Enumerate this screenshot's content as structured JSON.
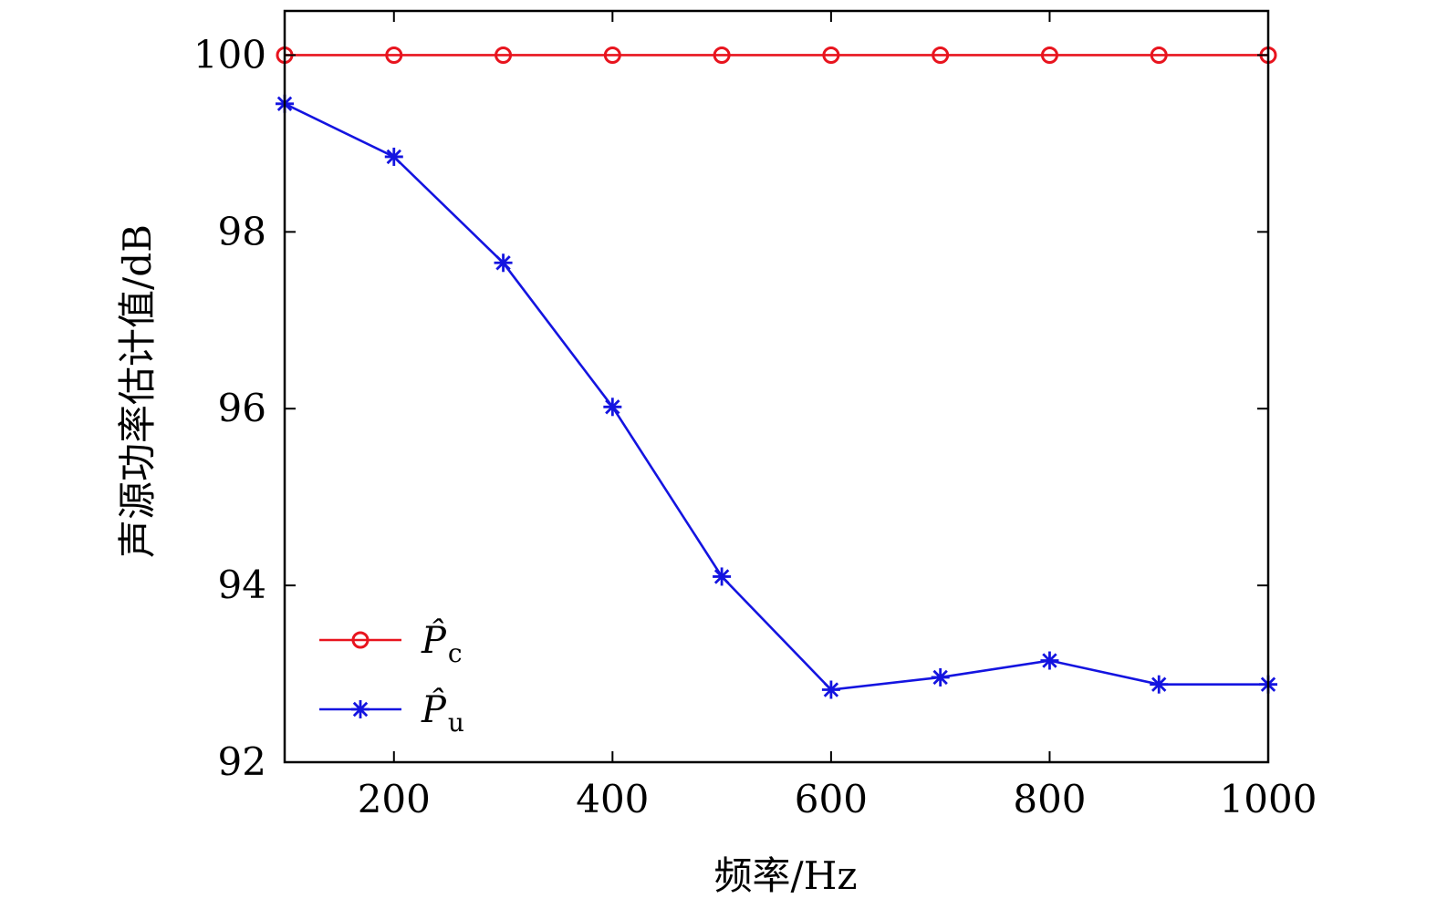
{
  "chart_data": {
    "type": "line",
    "xlabel": "频率/Hz",
    "ylabel": "声源功率估计值/dB",
    "xlim": [
      100,
      1000
    ],
    "ylim": [
      92,
      100.5
    ],
    "xticks": [
      200,
      400,
      600,
      800,
      1000
    ],
    "yticks": [
      92,
      94,
      96,
      98,
      100
    ],
    "xtick_labels": [
      "200",
      "400",
      "600",
      "800",
      "1000"
    ],
    "ytick_labels": [
      "92",
      "94",
      "96",
      "98",
      "100"
    ],
    "x": [
      100,
      200,
      300,
      400,
      500,
      600,
      700,
      800,
      900,
      1000
    ],
    "series": [
      {
        "name": "P̂c",
        "legend_base": "P̂",
        "legend_sub": "c",
        "color": "#e8141e",
        "marker": "circle",
        "values": [
          100,
          100,
          100,
          100,
          100,
          100,
          100,
          100,
          100,
          100
        ]
      },
      {
        "name": "P̂u",
        "legend_base": "P̂",
        "legend_sub": "u",
        "color": "#1414e0",
        "marker": "asterisk",
        "values": [
          99.45,
          98.85,
          97.65,
          96.02,
          94.1,
          92.82,
          92.96,
          93.15,
          92.88,
          92.88
        ]
      }
    ],
    "legend_position": "lower-left",
    "grid": false
  }
}
